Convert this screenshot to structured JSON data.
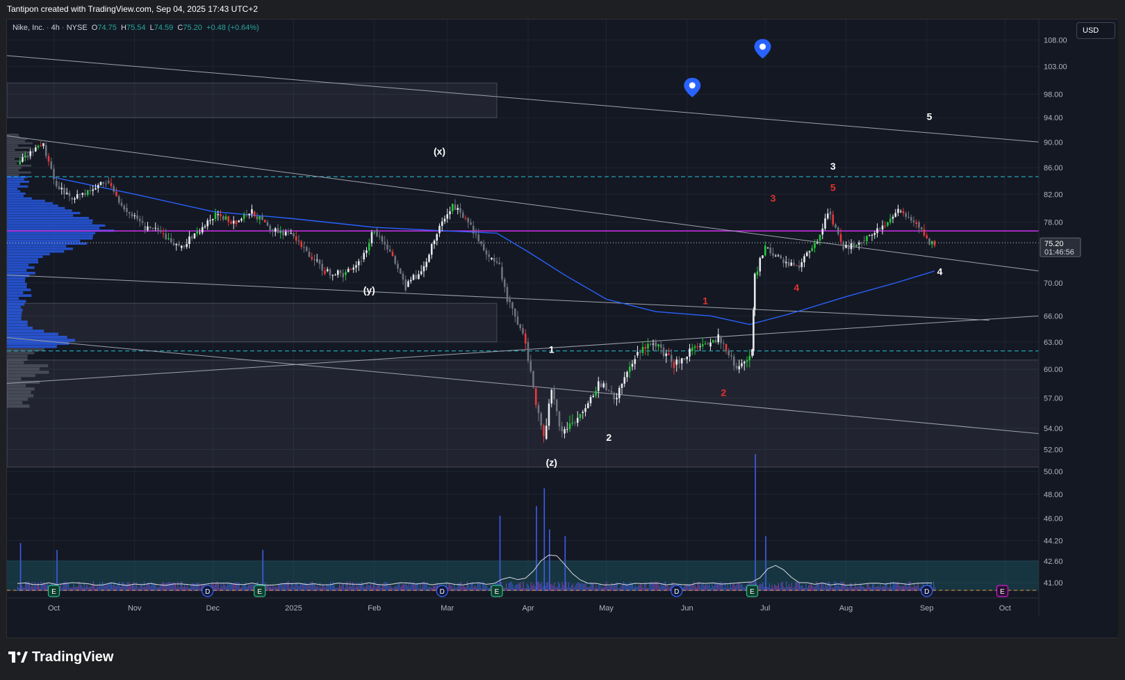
{
  "header": {
    "attribution": "Tantipon created with TradingView.com, Sep 04, 2025 17:43 UTC+2"
  },
  "symbol": {
    "name": "Nike, Inc.",
    "interval": "4h",
    "exchange": "NYSE",
    "open": "74.75",
    "high": "75.54",
    "low": "74.59",
    "close": "75.20",
    "change": "+0.48 (+0.64%)"
  },
  "currency": "USD",
  "price_tag": {
    "value": "75.20",
    "countdown": "01:46:56"
  },
  "footer": {
    "brand": "TradingView"
  },
  "colors": {
    "up": "#26c73a",
    "down": "#e63a3a",
    "neutral": "#9aa0ac",
    "ma": "#2962ff",
    "resistance": "#c030e0",
    "dashed": "#26c6da",
    "wave_white": "#ffffff",
    "wave_red": "#e5322d"
  },
  "chart_data": {
    "type": "candlestick",
    "y_axis": {
      "scale": "log",
      "range": [
        40.5,
        112
      ],
      "ticks": [
        108,
        103,
        98,
        94,
        90,
        86,
        82,
        78,
        75.2,
        70,
        66,
        63,
        60,
        57,
        54,
        52,
        50,
        48,
        46,
        44.2,
        42.6,
        41
      ],
      "tick_labels": [
        "108.00",
        "103.00",
        "98.00",
        "94.00",
        "90.00",
        "86.00",
        "82.00",
        "78.00",
        "",
        "70.00",
        "66.00",
        "63.00",
        "60.00",
        "57.00",
        "54.00",
        "52.00",
        "50.00",
        "48.00",
        "46.00",
        "44.20",
        "42.60",
        "41.00"
      ]
    },
    "x_axis": {
      "range": [
        "2024-09-13",
        "2025-10-14"
      ],
      "labels": [
        {
          "date": "2024-10-01",
          "label": "Oct"
        },
        {
          "date": "2024-11-01",
          "label": "Nov"
        },
        {
          "date": "2024-12-01",
          "label": "Dec"
        },
        {
          "date": "2025-01-01",
          "label": "2025"
        },
        {
          "date": "2025-02-01",
          "label": "Feb"
        },
        {
          "date": "2025-03-01",
          "label": "Mar"
        },
        {
          "date": "2025-04-01",
          "label": "Apr"
        },
        {
          "date": "2025-05-01",
          "label": "May"
        },
        {
          "date": "2025-06-01",
          "label": "Jun"
        },
        {
          "date": "2025-07-01",
          "label": "Jul"
        },
        {
          "date": "2025-08-01",
          "label": "Aug"
        },
        {
          "date": "2025-09-01",
          "label": "Sep"
        },
        {
          "date": "2025-10-01",
          "label": "Oct"
        }
      ]
    },
    "price_path": [
      [
        "2024-09-17",
        86.5
      ],
      [
        "2024-09-23",
        88.5
      ],
      [
        "2024-09-27",
        89.5
      ],
      [
        "2024-10-01",
        84.0
      ],
      [
        "2024-10-07",
        81.5
      ],
      [
        "2024-10-15",
        82.5
      ],
      [
        "2024-10-21",
        84.0
      ],
      [
        "2024-10-28",
        80.0
      ],
      [
        "2024-11-04",
        77.5
      ],
      [
        "2024-11-11",
        76.5
      ],
      [
        "2024-11-18",
        74.5
      ],
      [
        "2024-11-25",
        76.5
      ],
      [
        "2024-12-02",
        79.0
      ],
      [
        "2024-12-10",
        78.0
      ],
      [
        "2024-12-16",
        79.5
      ],
      [
        "2024-12-23",
        77.0
      ],
      [
        "2024-12-30",
        76.5
      ],
      [
        "2025-01-06",
        74.0
      ],
      [
        "2025-01-13",
        71.5
      ],
      [
        "2025-01-20",
        71.0
      ],
      [
        "2025-01-27",
        73.0
      ],
      [
        "2025-02-01",
        77.0
      ],
      [
        "2025-02-07",
        74.0
      ],
      [
        "2025-02-13",
        69.5
      ],
      [
        "2025-02-20",
        72.0
      ],
      [
        "2025-02-25",
        76.5
      ],
      [
        "2025-03-03",
        80.5
      ],
      [
        "2025-03-10",
        77.5
      ],
      [
        "2025-03-17",
        73.0
      ],
      [
        "2025-03-21",
        72.0
      ],
      [
        "2025-03-24",
        68.0
      ],
      [
        "2025-03-31",
        63.0
      ],
      [
        "2025-04-03",
        58.0
      ],
      [
        "2025-04-07",
        53.0
      ],
      [
        "2025-04-10",
        58.0
      ],
      [
        "2025-04-14",
        53.5
      ],
      [
        "2025-04-21",
        55.5
      ],
      [
        "2025-04-28",
        58.5
      ],
      [
        "2025-05-05",
        57.0
      ],
      [
        "2025-05-12",
        61.5
      ],
      [
        "2025-05-19",
        63.0
      ],
      [
        "2025-05-27",
        60.5
      ],
      [
        "2025-06-02",
        62.0
      ],
      [
        "2025-06-09",
        62.5
      ],
      [
        "2025-06-13",
        63.5
      ],
      [
        "2025-06-20",
        60.0
      ],
      [
        "2025-06-26",
        62.0
      ],
      [
        "2025-06-27",
        71.0
      ],
      [
        "2025-07-01",
        74.5
      ],
      [
        "2025-07-07",
        73.0
      ],
      [
        "2025-07-14",
        72.0
      ],
      [
        "2025-07-21",
        75.5
      ],
      [
        "2025-07-25",
        79.5
      ],
      [
        "2025-07-31",
        74.5
      ],
      [
        "2025-08-07",
        75.5
      ],
      [
        "2025-08-14",
        77.0
      ],
      [
        "2025-08-21",
        79.5
      ],
      [
        "2025-08-28",
        78.0
      ],
      [
        "2025-09-02",
        75.0
      ],
      [
        "2025-09-04",
        75.2
      ]
    ],
    "moving_average": [
      [
        "2024-10-01",
        84.5
      ],
      [
        "2024-11-01",
        82.0
      ],
      [
        "2024-12-01",
        79.5
      ],
      [
        "2025-01-01",
        78.5
      ],
      [
        "2025-02-01",
        77.3
      ],
      [
        "2025-03-01",
        76.8
      ],
      [
        "2025-03-20",
        76.5
      ],
      [
        "2025-04-01",
        74.0
      ],
      [
        "2025-04-15",
        71.0
      ],
      [
        "2025-05-01",
        68.0
      ],
      [
        "2025-05-20",
        66.5
      ],
      [
        "2025-06-10",
        66.0
      ],
      [
        "2025-06-25",
        65.0
      ],
      [
        "2025-07-10",
        66.2
      ],
      [
        "2025-08-01",
        68.3
      ],
      [
        "2025-08-20",
        70.0
      ],
      [
        "2025-09-04",
        71.5
      ]
    ],
    "horizontal_levels": [
      {
        "price": 76.8,
        "style": "solid",
        "color": "#c030e0"
      },
      {
        "price": 84.6,
        "style": "dashed",
        "color": "#26c6da"
      },
      {
        "price": 62.0,
        "style": "dashed",
        "color": "#26c6da"
      },
      {
        "price": 75.2,
        "style": "dotted",
        "color": "#cfd3dc"
      }
    ],
    "trend_lines": [
      {
        "from": [
          "2024-09-13",
          105.0
        ],
        "to": [
          "2025-10-14",
          90.0
        ]
      },
      {
        "from": [
          "2024-09-13",
          91.0
        ],
        "to": [
          "2025-10-14",
          71.5
        ]
      },
      {
        "from": [
          "2024-09-13",
          71.0
        ],
        "to": [
          "2025-09-25",
          65.5
        ]
      },
      {
        "from": [
          "2024-09-13",
          58.5
        ],
        "to": [
          "2025-10-14",
          66.0
        ]
      },
      {
        "from": [
          "2024-09-13",
          63.5
        ],
        "to": [
          "2025-10-14",
          53.5
        ]
      }
    ],
    "zones": [
      {
        "from": "2024-09-13",
        "to": "2025-03-20",
        "low": 94.0,
        "high": 100.0
      },
      {
        "from": "2024-09-13",
        "to": "2025-03-20",
        "low": 63.0,
        "high": 67.5
      },
      {
        "from": "2024-09-13",
        "to": "2025-10-14",
        "low": 50.4,
        "high": 61.0
      }
    ],
    "wave_labels": [
      {
        "text": "(x)",
        "date": "2025-02-26",
        "price": 88.0,
        "color": "#ffffff"
      },
      {
        "text": "(y)",
        "date": "2025-01-30",
        "price": 68.7,
        "color": "#ffffff"
      },
      {
        "text": "(z)",
        "date": "2025-04-10",
        "price": 50.5,
        "color": "#ffffff"
      },
      {
        "text": "1",
        "date": "2025-04-10",
        "price": 61.8,
        "color": "#ffffff"
      },
      {
        "text": "2",
        "date": "2025-05-02",
        "price": 52.8,
        "color": "#ffffff"
      },
      {
        "text": "3",
        "date": "2025-07-27",
        "price": 85.7,
        "color": "#ffffff"
      },
      {
        "text": "4",
        "date": "2025-09-06",
        "price": 71.0,
        "color": "#ffffff"
      },
      {
        "text": "5",
        "date": "2025-09-02",
        "price": 93.6,
        "color": "#ffffff"
      },
      {
        "text": "1",
        "date": "2025-06-08",
        "price": 67.4,
        "color": "#e5322d"
      },
      {
        "text": "2",
        "date": "2025-06-15",
        "price": 57.2,
        "color": "#e5322d"
      },
      {
        "text": "3",
        "date": "2025-07-04",
        "price": 80.9,
        "color": "#e5322d"
      },
      {
        "text": "4",
        "date": "2025-07-13",
        "price": 69.0,
        "color": "#e5322d"
      },
      {
        "text": "5",
        "date": "2025-07-27",
        "price": 82.5,
        "color": "#e5322d"
      }
    ],
    "markers": [
      {
        "type": "location-pin",
        "date": "2025-06-03",
        "price": 99.2
      },
      {
        "type": "location-pin",
        "date": "2025-06-30",
        "price": 106.3
      }
    ],
    "events": [
      {
        "type": "earnings",
        "label": "E",
        "date": "2024-10-01"
      },
      {
        "type": "dividend",
        "label": "D",
        "date": "2024-11-29"
      },
      {
        "type": "earnings",
        "label": "E",
        "date": "2024-12-19"
      },
      {
        "type": "dividend",
        "label": "D",
        "date": "2025-02-27"
      },
      {
        "type": "earnings",
        "label": "E",
        "date": "2025-03-20"
      },
      {
        "type": "dividend",
        "label": "D",
        "date": "2025-05-28"
      },
      {
        "type": "earnings",
        "label": "E",
        "date": "2025-06-26"
      },
      {
        "type": "dividend",
        "label": "D",
        "date": "2025-09-01"
      },
      {
        "type": "earnings",
        "label": "E",
        "date": "2025-09-30",
        "future": true
      }
    ],
    "volume_spikes": [
      {
        "date": "2024-09-18",
        "rel": 0.35
      },
      {
        "date": "2024-10-02",
        "rel": 0.3
      },
      {
        "date": "2024-12-20",
        "rel": 0.3
      },
      {
        "date": "2025-03-21",
        "rel": 0.55
      },
      {
        "date": "2025-04-04",
        "rel": 0.62
      },
      {
        "date": "2025-04-07",
        "rel": 0.75
      },
      {
        "date": "2025-04-09",
        "rel": 0.45
      },
      {
        "date": "2025-04-15",
        "rel": 0.4
      },
      {
        "date": "2025-06-27",
        "rel": 1.0
      },
      {
        "date": "2025-07-01",
        "rel": 0.4
      }
    ]
  }
}
